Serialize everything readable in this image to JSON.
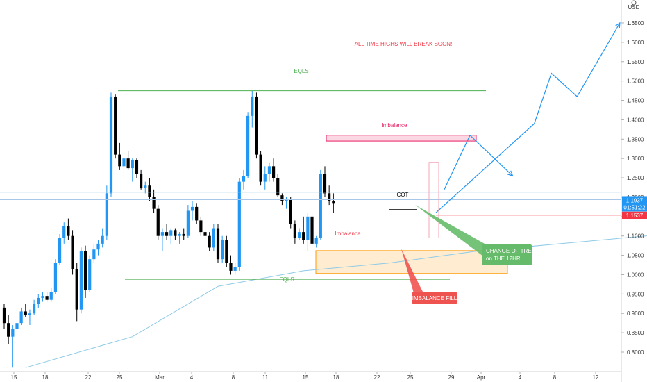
{
  "chart_data": {
    "type": "candlestick",
    "title": "",
    "currency": "USD",
    "y_axis": {
      "range": [
        0.75,
        1.7
      ],
      "ticks": [
        "0.8000",
        "0.8500",
        "0.9000",
        "0.9500",
        "1.0000",
        "1.0500",
        "1.1000",
        "1.1500",
        "1.2000",
        "1.2500",
        "1.3000",
        "1.3500",
        "1.4000",
        "1.4500",
        "1.5000",
        "1.5500",
        "1.6000",
        "1.6500"
      ]
    },
    "x_axis": {
      "ticks": [
        "15",
        "18",
        "22",
        "25",
        "Mar",
        "4",
        "8",
        "11",
        "15",
        "18",
        "22",
        "25",
        "29",
        "Apr",
        "4",
        "8",
        "12"
      ]
    },
    "price_labels": {
      "current_price": "1.1937",
      "countdown": "01:51:22",
      "level_price": "1.1537"
    },
    "annotations": {
      "headline": "ALL TIME HIGHS WILL BREAK SOON!",
      "eqls_top": "EQLS",
      "eqls_bottom": "EQLS",
      "imbalance_top": "Imbalance",
      "imbalance_zone": "Imbalance",
      "cot": "COT",
      "change_of_trend": [
        "CHANGE OF TREND",
        "on THE 12HR"
      ],
      "imbalance_fill": "IMBALANCE FILL"
    },
    "levels": {
      "eqls_top": 1.475,
      "eqls_bottom": 0.988,
      "imbalance_top_zone": [
        1.345,
        1.36
      ],
      "imbalance_bottom_zone": [
        1.003,
        1.062
      ],
      "current_price": 1.1937,
      "level_price": 1.1537
    },
    "candles": [
      [
        0.915,
        0.925,
        0.86,
        0.875
      ],
      [
        0.875,
        0.895,
        0.82,
        0.84
      ],
      [
        0.84,
        0.87,
        0.76,
        0.86
      ],
      [
        0.86,
        0.885,
        0.85,
        0.875
      ],
      [
        0.875,
        0.915,
        0.87,
        0.905
      ],
      [
        0.905,
        0.925,
        0.89,
        0.895
      ],
      [
        0.895,
        0.91,
        0.87,
        0.9
      ],
      [
        0.9,
        0.935,
        0.895,
        0.925
      ],
      [
        0.925,
        0.95,
        0.915,
        0.94
      ],
      [
        0.94,
        0.955,
        0.93,
        0.945
      ],
      [
        0.945,
        0.955,
        0.93,
        0.935
      ],
      [
        0.935,
        0.965,
        0.93,
        0.955
      ],
      [
        0.955,
        1.04,
        0.95,
        1.03
      ],
      [
        1.03,
        1.105,
        1.025,
        1.095
      ],
      [
        1.095,
        1.135,
        1.08,
        1.125
      ],
      [
        1.125,
        1.145,
        1.09,
        1.1
      ],
      [
        1.1,
        1.115,
        1.0,
        1.015
      ],
      [
        1.015,
        1.03,
        0.88,
        0.91
      ],
      [
        0.91,
        1.07,
        0.9,
        1.06
      ],
      [
        1.06,
        1.075,
        0.94,
        0.96
      ],
      [
        0.96,
        1.05,
        0.955,
        1.04
      ],
      [
        1.04,
        1.08,
        1.03,
        1.065
      ],
      [
        1.065,
        1.09,
        1.05,
        1.08
      ],
      [
        1.08,
        1.12,
        1.07,
        1.1
      ],
      [
        1.1,
        1.23,
        1.09,
        1.21
      ],
      [
        1.21,
        1.47,
        1.2,
        1.46
      ],
      [
        1.46,
        1.465,
        1.3,
        1.31
      ],
      [
        1.31,
        1.34,
        1.27,
        1.28
      ],
      [
        1.28,
        1.31,
        1.25,
        1.3
      ],
      [
        1.3,
        1.32,
        1.27,
        1.275
      ],
      [
        1.275,
        1.3,
        1.24,
        1.295
      ],
      [
        1.295,
        1.3,
        1.25,
        1.26
      ],
      [
        1.26,
        1.27,
        1.22,
        1.225
      ],
      [
        1.225,
        1.24,
        1.21,
        1.23
      ],
      [
        1.23,
        1.25,
        1.19,
        1.2
      ],
      [
        1.2,
        1.22,
        1.16,
        1.17
      ],
      [
        1.17,
        1.18,
        1.09,
        1.1
      ],
      [
        1.1,
        1.12,
        1.06,
        1.11
      ],
      [
        1.11,
        1.13,
        1.09,
        1.1
      ],
      [
        1.1,
        1.12,
        1.08,
        1.115
      ],
      [
        1.115,
        1.12,
        1.09,
        1.1
      ],
      [
        1.1,
        1.11,
        1.08,
        1.105
      ],
      [
        1.105,
        1.12,
        1.09,
        1.1
      ],
      [
        1.1,
        1.18,
        1.095,
        1.165
      ],
      [
        1.165,
        1.19,
        1.14,
        1.175
      ],
      [
        1.175,
        1.185,
        1.13,
        1.14
      ],
      [
        1.14,
        1.15,
        1.1,
        1.11
      ],
      [
        1.11,
        1.12,
        1.09,
        1.1
      ],
      [
        1.1,
        1.11,
        1.06,
        1.07
      ],
      [
        1.07,
        1.13,
        1.06,
        1.12
      ],
      [
        1.12,
        1.13,
        1.03,
        1.04
      ],
      [
        1.04,
        1.1,
        1.03,
        1.09
      ],
      [
        1.09,
        1.1,
        1.02,
        1.03
      ],
      [
        1.03,
        1.05,
        1.0,
        1.01
      ],
      [
        1.01,
        1.03,
        1.0,
        1.02
      ],
      [
        1.02,
        1.25,
        1.01,
        1.24
      ],
      [
        1.24,
        1.27,
        1.22,
        1.255
      ],
      [
        1.255,
        1.42,
        1.25,
        1.41
      ],
      [
        1.41,
        1.475,
        1.38,
        1.46
      ],
      [
        1.46,
        1.47,
        1.3,
        1.31
      ],
      [
        1.31,
        1.32,
        1.23,
        1.24
      ],
      [
        1.24,
        1.28,
        1.22,
        1.26
      ],
      [
        1.26,
        1.29,
        1.24,
        1.28
      ],
      [
        1.28,
        1.3,
        1.24,
        1.25
      ],
      [
        1.25,
        1.26,
        1.2,
        1.205
      ],
      [
        1.205,
        1.21,
        1.18,
        1.19
      ],
      [
        1.19,
        1.2,
        1.17,
        1.195
      ],
      [
        1.195,
        1.2,
        1.12,
        1.13
      ],
      [
        1.13,
        1.14,
        1.08,
        1.095
      ],
      [
        1.095,
        1.12,
        1.09,
        1.11
      ],
      [
        1.11,
        1.15,
        1.08,
        1.09
      ],
      [
        1.09,
        1.16,
        1.06,
        1.15
      ],
      [
        1.15,
        1.16,
        1.07,
        1.08
      ],
      [
        1.08,
        1.1,
        1.07,
        1.095
      ],
      [
        1.095,
        1.27,
        1.09,
        1.26
      ],
      [
        1.26,
        1.28,
        1.2,
        1.21
      ],
      [
        1.21,
        1.23,
        1.18,
        1.19
      ],
      [
        1.19,
        1.21,
        1.16,
        1.185
      ]
    ],
    "ema_points": [
      [
        5,
        0.76
      ],
      [
        30,
        0.84
      ],
      [
        50,
        0.97
      ],
      [
        70,
        1.01
      ],
      [
        90,
        1.03
      ],
      [
        110,
        1.06
      ],
      [
        130,
        1.08
      ],
      [
        150,
        1.1
      ],
      [
        170,
        1.12
      ],
      [
        189,
        1.14
      ],
      [
        200,
        1.15
      ]
    ],
    "projection_paths": {
      "path_a": [
        [
          77,
          1.16
        ],
        [
          100,
          1.39
        ],
        [
          104,
          1.52
        ],
        [
          110,
          1.46
        ],
        [
          120,
          1.65
        ]
      ],
      "path_b": [
        [
          77,
          1.22
        ],
        [
          83,
          1.36
        ],
        [
          93,
          1.255
        ]
      ]
    }
  },
  "colors": {
    "up": "#2196f3",
    "down": "#000000",
    "eqls_line": "#4caf50",
    "imbalance_pink": "#e91e63",
    "imbalance_orange": "#ff9800",
    "headline": "#f23645",
    "projection": "#2196f3",
    "level_red": "#f23645",
    "tag_green": "#66bb6a",
    "tag_red": "#ef5350",
    "ema": "#8ecae6"
  },
  "icons": {
    "settings": "gear-icon"
  }
}
